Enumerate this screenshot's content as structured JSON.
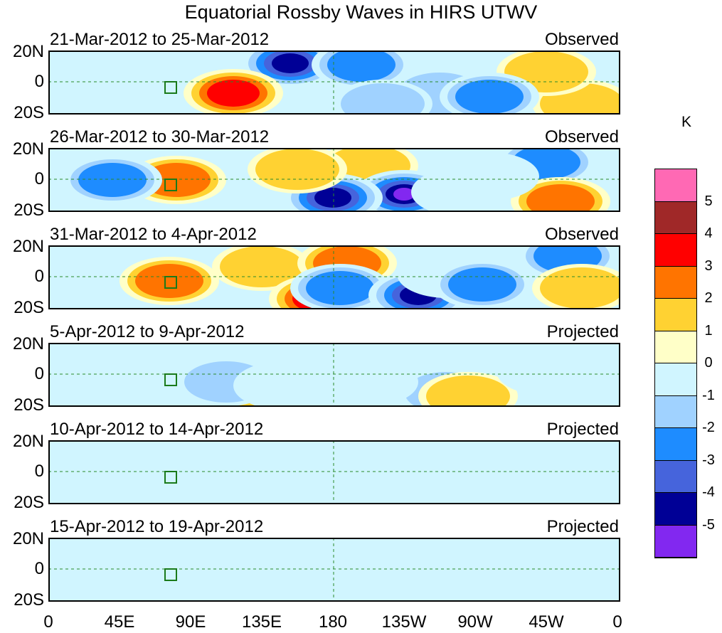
{
  "title": "Equatorial Rossby Waves in HIRS UTWV",
  "panels": [
    {
      "date_range": "21-Mar-2012 to 25-Mar-2012",
      "status": "Observed"
    },
    {
      "date_range": "26-Mar-2012 to 30-Mar-2012",
      "status": "Observed"
    },
    {
      "date_range": "31-Mar-2012 to 4-Apr-2012",
      "status": "Observed"
    },
    {
      "date_range": "5-Apr-2012 to 9-Apr-2012",
      "status": "Projected"
    },
    {
      "date_range": "10-Apr-2012 to 14-Apr-2012",
      "status": "Projected"
    },
    {
      "date_range": "15-Apr-2012 to 19-Apr-2012",
      "status": "Projected"
    }
  ],
  "lat_ticks": [
    "20N",
    "0",
    "20S"
  ],
  "lon_ticks": [
    "0",
    "45E",
    "90E",
    "135E",
    "180",
    "135W",
    "90W",
    "45W",
    "0"
  ],
  "colorbar": {
    "unit": "K",
    "tick_labels": [
      "5",
      "4",
      "3",
      "2",
      "1",
      "0",
      "-1",
      "-2",
      "-3",
      "-4",
      "-5"
    ],
    "colors": [
      "#ff69b4",
      "#a02828",
      "#ff0000",
      "#ff7400",
      "#ffd232",
      "#ffffc8",
      "#d0f5ff",
      "#a0d2ff",
      "#1e8cff",
      "#4664dc",
      "#000096",
      "#8228f0"
    ]
  }
}
